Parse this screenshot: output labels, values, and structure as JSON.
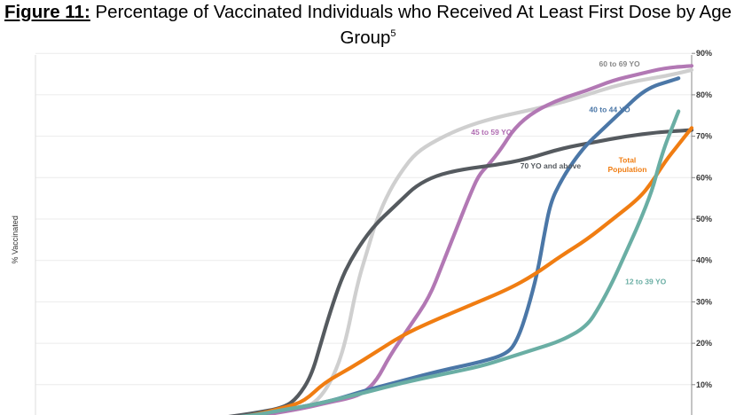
{
  "page": {
    "figure_label": "Figure 11:",
    "title_line1": "Percentage of Vaccinated Individuals who Received At Least First Dose by Age",
    "title_line2": "Group",
    "footnote_marker": "5"
  },
  "chart_data": {
    "type": "line",
    "title": "Figure 11: Percentage of Vaccinated Individuals who Received At Least First Dose by Age Group",
    "ylabel": "% Vaccinated",
    "ylim": [
      0,
      90
    ],
    "x_range": [
      0,
      100
    ],
    "y_ticks": [
      10,
      20,
      30,
      40,
      50,
      60,
      70,
      80,
      90
    ],
    "y_tick_labels": [
      "10%",
      "20%",
      "30%",
      "40%",
      "50%",
      "60%",
      "70%",
      "80%",
      "90%"
    ],
    "grid": true,
    "series": [
      {
        "name": "60 to 69 YO",
        "color": "#cfcfcf",
        "points": [
          [
            20,
            -0.5
          ],
          [
            26,
            0.8
          ],
          [
            33,
            2.5
          ],
          [
            40,
            4.0
          ],
          [
            42,
            5.0
          ],
          [
            44,
            8
          ],
          [
            46,
            14
          ],
          [
            47.5,
            22
          ],
          [
            49,
            34
          ],
          [
            50.5,
            42
          ],
          [
            52,
            50
          ],
          [
            54,
            57
          ],
          [
            56,
            62
          ],
          [
            58,
            66
          ],
          [
            61,
            69
          ],
          [
            65,
            72
          ],
          [
            70,
            74.5
          ],
          [
            76,
            76.5
          ],
          [
            81,
            78.5
          ],
          [
            84,
            80
          ],
          [
            88,
            82
          ],
          [
            92,
            83.5
          ],
          [
            96,
            84.5
          ],
          [
            100,
            86
          ]
        ]
      },
      {
        "name": "45 to 59 YO",
        "color": "#b278b4",
        "points": [
          [
            20,
            -0.8
          ],
          [
            26,
            0.3
          ],
          [
            32,
            2.0
          ],
          [
            40,
            4.0
          ],
          [
            45,
            5.8
          ],
          [
            48,
            6.8
          ],
          [
            50,
            8
          ],
          [
            52,
            11
          ],
          [
            54,
            17
          ],
          [
            57,
            24
          ],
          [
            60,
            31
          ],
          [
            62,
            39
          ],
          [
            64,
            47
          ],
          [
            66,
            55
          ],
          [
            67.5,
            60.5
          ],
          [
            69,
            63
          ],
          [
            71,
            67
          ],
          [
            73,
            72
          ],
          [
            76,
            76
          ],
          [
            80,
            79
          ],
          [
            84,
            81
          ],
          [
            88,
            83.5
          ],
          [
            92,
            85
          ],
          [
            96,
            86.5
          ],
          [
            100,
            87
          ]
        ]
      },
      {
        "name": "70 YO and above",
        "color": "#555a5f",
        "points": [
          [
            20,
            -0.5
          ],
          [
            26,
            1.5
          ],
          [
            33,
            3
          ],
          [
            38,
            4.5
          ],
          [
            40,
            7
          ],
          [
            42,
            12
          ],
          [
            43.5,
            20
          ],
          [
            45,
            28
          ],
          [
            46.5,
            35
          ],
          [
            48,
            40
          ],
          [
            50,
            45
          ],
          [
            52,
            49
          ],
          [
            54,
            52
          ],
          [
            56,
            55
          ],
          [
            58,
            58
          ],
          [
            61,
            60.5
          ],
          [
            65,
            62
          ],
          [
            70,
            63
          ],
          [
            75,
            64.5
          ],
          [
            80,
            67
          ],
          [
            85,
            68.5
          ],
          [
            90,
            70
          ],
          [
            95,
            71
          ],
          [
            100,
            71.5
          ]
        ]
      },
      {
        "name": "40 to 44 YO",
        "color": "#4b77a7",
        "points": [
          [
            20,
            -0.5
          ],
          [
            26,
            0.8
          ],
          [
            33,
            2.5
          ],
          [
            38,
            4
          ],
          [
            42,
            5
          ],
          [
            46,
            6.5
          ],
          [
            50,
            8.5
          ],
          [
            56,
            11
          ],
          [
            62,
            13.5
          ],
          [
            68,
            15.5
          ],
          [
            72,
            17.5
          ],
          [
            73.5,
            21
          ],
          [
            75,
            28
          ],
          [
            76.5,
            37
          ],
          [
            77.5,
            46
          ],
          [
            78.5,
            54
          ],
          [
            80,
            59
          ],
          [
            82,
            64
          ],
          [
            84,
            68
          ],
          [
            86,
            71
          ],
          [
            88,
            74
          ],
          [
            90,
            77
          ],
          [
            92,
            80
          ],
          [
            94,
            82
          ],
          [
            96,
            83
          ],
          [
            98,
            84
          ]
        ]
      },
      {
        "name": "Total Population",
        "color": "#f07d12",
        "points": [
          [
            20,
            -0.5
          ],
          [
            26,
            1
          ],
          [
            33,
            2.5
          ],
          [
            38,
            4.5
          ],
          [
            41,
            6
          ],
          [
            44,
            10.5
          ],
          [
            48,
            14
          ],
          [
            52,
            18
          ],
          [
            56,
            22
          ],
          [
            60,
            25
          ],
          [
            66,
            29
          ],
          [
            72,
            33
          ],
          [
            76,
            36.5
          ],
          [
            80,
            41
          ],
          [
            84,
            45
          ],
          [
            88,
            50
          ],
          [
            92,
            55
          ],
          [
            94,
            59
          ],
          [
            96,
            64
          ],
          [
            98,
            68
          ],
          [
            100,
            72
          ]
        ]
      },
      {
        "name": "12 to 39 YO",
        "color": "#6aaea4",
        "points": [
          [
            20,
            -0.5
          ],
          [
            26,
            1.5
          ],
          [
            33,
            2.5
          ],
          [
            38,
            4
          ],
          [
            42,
            5
          ],
          [
            46,
            6.5
          ],
          [
            50,
            8
          ],
          [
            56,
            10.5
          ],
          [
            62,
            12.5
          ],
          [
            68,
            14.5
          ],
          [
            72,
            16.5
          ],
          [
            76,
            18.5
          ],
          [
            80,
            20.5
          ],
          [
            84,
            24
          ],
          [
            86,
            29
          ],
          [
            88,
            35
          ],
          [
            90,
            42
          ],
          [
            92,
            49
          ],
          [
            94,
            57
          ],
          [
            95,
            63
          ],
          [
            96,
            68
          ],
          [
            97,
            72
          ],
          [
            98,
            76
          ]
        ]
      }
    ],
    "annotations": [
      {
        "text": "60 to 69 YO",
        "series": "60 to 69 YO",
        "color": "#888888"
      },
      {
        "text": "45 to 59 YO",
        "series": "45 to 59 YO",
        "color": "#b06db2"
      },
      {
        "text": "70 YO and above",
        "series": "70 YO and above",
        "color": "#555a5f"
      },
      {
        "text": "40 to 44 YO",
        "series": "40 to 44 YO",
        "color": "#4b77a7"
      },
      {
        "text": "Total",
        "series": "Total Population",
        "color": "#f07d12"
      },
      {
        "text": "Population",
        "series": "Total Population",
        "color": "#f07d12"
      },
      {
        "text": "12 to 39 YO",
        "series": "12 to 39 YO",
        "color": "#6aaea4"
      }
    ]
  }
}
